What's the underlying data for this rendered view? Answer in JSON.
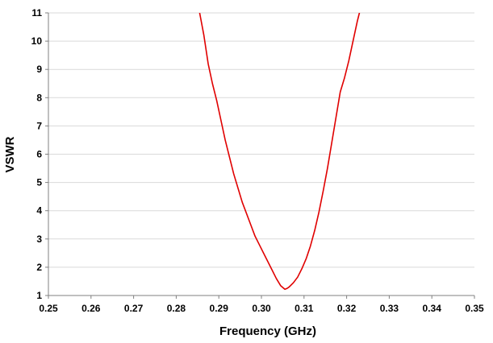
{
  "chart_data": {
    "type": "line",
    "title": "",
    "xlabel": "Frequency (GHz)",
    "ylabel": "VSWR",
    "xlim": [
      0.25,
      0.35
    ],
    "ylim": [
      1,
      11
    ],
    "x_ticks": [
      "0.25",
      "0.26",
      "0.27",
      "0.28",
      "0.29",
      "0.30",
      "0.31",
      "0.32",
      "0.33",
      "0.34",
      "0.35"
    ],
    "y_ticks": [
      "1",
      "2",
      "3",
      "4",
      "5",
      "6",
      "7",
      "8",
      "9",
      "10",
      "11"
    ],
    "grid": "horizontal",
    "legend": "none",
    "colors": {
      "series": "#e00000",
      "grid": "#d9d9d9",
      "axis": "#808080"
    },
    "series": [
      {
        "x": [
          0.2855,
          0.2865,
          0.2875,
          0.2885,
          0.2895,
          0.2905,
          0.2915,
          0.2925,
          0.2935,
          0.2945,
          0.2955,
          0.2965,
          0.2975,
          0.2985,
          0.2995,
          0.3005,
          0.3015,
          0.3025,
          0.3035,
          0.3045,
          0.3055,
          0.306,
          0.3065,
          0.3075,
          0.3085,
          0.3095,
          0.3105,
          0.3115,
          0.3125,
          0.3135,
          0.3145,
          0.3155,
          0.3165,
          0.3175,
          0.3185,
          0.3195,
          0.3205,
          0.3215,
          0.3225,
          0.323
        ],
        "y": [
          11.0,
          10.2,
          9.2,
          8.5,
          7.9,
          7.2,
          6.5,
          5.9,
          5.3,
          4.8,
          4.3,
          3.9,
          3.5,
          3.1,
          2.8,
          2.5,
          2.2,
          1.9,
          1.6,
          1.35,
          1.22,
          1.25,
          1.3,
          1.45,
          1.65,
          1.95,
          2.3,
          2.75,
          3.3,
          3.95,
          4.7,
          5.5,
          6.4,
          7.3,
          8.2,
          8.7,
          9.3,
          10.0,
          10.7,
          11.0
        ]
      }
    ]
  }
}
